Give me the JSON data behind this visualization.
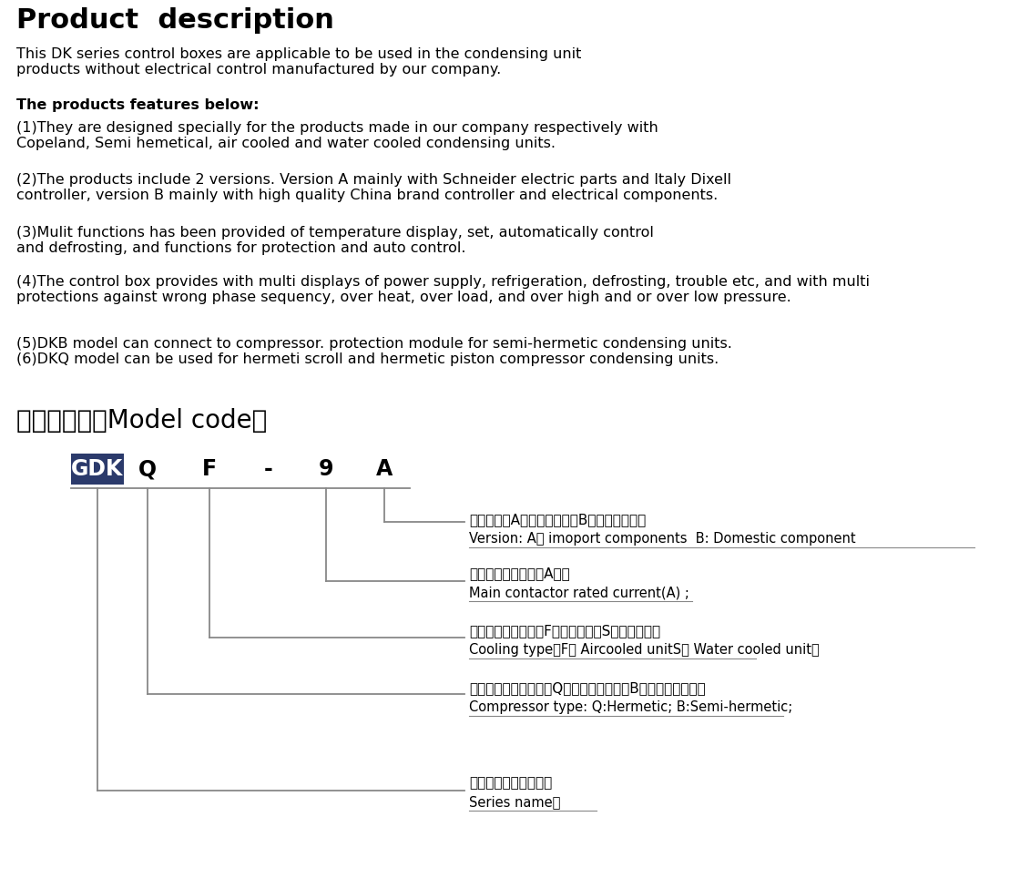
{
  "title": "Product  description",
  "intro": "This DK series control boxes are applicable to be used in the condensing unit\nproducts without electrical control manufactured by our company.",
  "features_title": "The products features below:",
  "feature1": "(1)They are designed specially for the products made in our company respectively with\nCopeland, Semi hemetical, air cooled and water cooled condensing units.",
  "feature2": "(2)The products include 2 versions. Version A mainly with Schneider electric parts and Italy Dixell\ncontroller, version B mainly with high quality China brand controller and electrical components.",
  "feature3": "(3)Mulit functions has been provided of temperature display, set, automatically control\nand defrosting, and functions for protection and auto control.",
  "feature4": "(4)The control box provides with multi displays of power supply, refrigeration, defrosting, trouble etc, and with multi\nprotections against wrong phase sequency, over heat, over load, and over high and or over low pressure.",
  "feature5": "(5)DKB model can connect to compressor. protection module for semi-hermetic condensing units.\n(6)DKQ model can be used for hermeti scroll and hermetic piston compressor condensing units.",
  "section2_title": "二、型号说明Model code：",
  "annotation1_cn": "配置代号，A：进口型配置、B：国产型配置；",
  "annotation1_en": "Version: A： imoport components  B: Domestic component",
  "annotation2_cn": "主接触器额定电流（A）；",
  "annotation2_en": "Main contactor rated current(A) ;",
  "annotation3_cn": "适用机组形式代号，F：风冷机组、S：水冷机组；",
  "annotation3_en": "Cooling type，F： Aircooled unitS： Water cooled unit；",
  "annotation4_cn": "适用压缩机形式代号，Q：全封闭压缩机、B：半封闭压缩机；",
  "annotation4_en": "Compressor type: Q:Hermetic; B:Semi-hermetic;",
  "annotation5_cn": "电控笱产品系列代号；",
  "annotation5_en": "Series name；",
  "bg_color": "#ffffff",
  "text_color": "#000000",
  "gdk_bg": "#2b3a6b",
  "gdk_fg": "#ffffff",
  "line_color": "#888888"
}
